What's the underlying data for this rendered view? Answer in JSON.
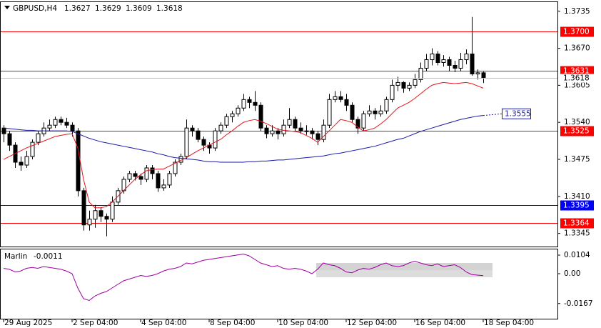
{
  "chart_data": [
    {
      "type": "candlestick",
      "symbol": "GBPUSD,H4",
      "ylim": [
        1.3322,
        1.3751
      ],
      "yticks": [
        1.3735,
        {
          "value": 1.367,
          "label": "1.3670"
        },
        1.3605,
        {
          "value": 1.354,
          "label": "1.3540"
        },
        1.3475,
        {
          "value": 1.341,
          "label": "1.3410"
        },
        1.3345
      ],
      "xticks": [
        {
          "value": 0,
          "label": "29 Aug 2025"
        },
        {
          "value": 12,
          "label": "2 Sep 04:00"
        },
        {
          "value": 24,
          "label": "4 Sep 04:00"
        },
        {
          "value": 36,
          "label": "8 Sep 04:00"
        },
        {
          "value": 48,
          "label": "10 Sep 04:00"
        },
        {
          "value": 60,
          "label": "12 Sep 04:00"
        },
        {
          "value": 72,
          "label": "16 Sep 04:00"
        },
        {
          "value": 84,
          "label": "18 Sep 04:00"
        }
      ],
      "series": [
        {
          "type": "candlestick",
          "up_color": "#ffffff",
          "down_color": "#000000",
          "values": [
            [
              1.353,
              1.3535,
              1.3505,
              1.352
            ],
            [
              1.352,
              1.3525,
              1.349,
              1.35
            ],
            [
              1.35,
              1.3505,
              1.346,
              1.347
            ],
            [
              1.347,
              1.348,
              1.3455,
              1.3465
            ],
            [
              1.3465,
              1.349,
              1.346,
              1.348
            ],
            [
              1.348,
              1.351,
              1.3475,
              1.3505
            ],
            [
              1.3505,
              1.3525,
              1.35,
              1.352
            ],
            [
              1.352,
              1.354,
              1.3515,
              1.353
            ],
            [
              1.353,
              1.3545,
              1.3525,
              1.3535
            ],
            [
              1.3535,
              1.355,
              1.353,
              1.3545
            ],
            [
              1.3545,
              1.355,
              1.3535,
              1.354
            ],
            [
              1.354,
              1.3548,
              1.353,
              1.3535
            ],
            [
              1.3535,
              1.354,
              1.3515,
              1.3525
            ],
            [
              1.3525,
              1.353,
              1.341,
              1.342
            ],
            [
              1.342,
              1.3425,
              1.335,
              1.336
            ],
            [
              1.336,
              1.3385,
              1.335,
              1.337
            ],
            [
              1.337,
              1.3395,
              1.3355,
              1.3385
            ],
            [
              1.3385,
              1.339,
              1.3365,
              1.3375
            ],
            [
              1.3375,
              1.338,
              1.334,
              1.337
            ],
            [
              1.337,
              1.341,
              1.3365,
              1.34
            ],
            [
              1.34,
              1.3425,
              1.3395,
              1.342
            ],
            [
              1.342,
              1.3445,
              1.3415,
              1.344
            ],
            [
              1.344,
              1.3455,
              1.3435,
              1.345
            ],
            [
              1.345,
              1.3455,
              1.3438,
              1.3445
            ],
            [
              1.3445,
              1.345,
              1.343,
              1.344
            ],
            [
              1.344,
              1.3465,
              1.3435,
              1.346
            ],
            [
              1.346,
              1.3465,
              1.344,
              1.345
            ],
            [
              1.345,
              1.3455,
              1.3418,
              1.3425
            ],
            [
              1.3425,
              1.344,
              1.342,
              1.343
            ],
            [
              1.343,
              1.3455,
              1.3425,
              1.345
            ],
            [
              1.345,
              1.3475,
              1.3445,
              1.347
            ],
            [
              1.347,
              1.3485,
              1.3465,
              1.348
            ],
            [
              1.348,
              1.3545,
              1.3475,
              1.353
            ],
            [
              1.353,
              1.3535,
              1.3515,
              1.3525
            ],
            [
              1.3525,
              1.353,
              1.3505,
              1.351
            ],
            [
              1.351,
              1.3515,
              1.349,
              1.35
            ],
            [
              1.35,
              1.3505,
              1.3485,
              1.3495
            ],
            [
              1.3495,
              1.353,
              1.349,
              1.3525
            ],
            [
              1.3525,
              1.354,
              1.352,
              1.3535
            ],
            [
              1.3535,
              1.3555,
              1.353,
              1.355
            ],
            [
              1.355,
              1.356,
              1.354,
              1.3555
            ],
            [
              1.3555,
              1.357,
              1.355,
              1.3565
            ],
            [
              1.3565,
              1.359,
              1.356,
              1.358
            ],
            [
              1.358,
              1.3585,
              1.3565,
              1.3575
            ],
            [
              1.3575,
              1.3595,
              1.356,
              1.357
            ],
            [
              1.357,
              1.3575,
              1.3525,
              1.353
            ],
            [
              1.353,
              1.3535,
              1.3512,
              1.352
            ],
            [
              1.352,
              1.3535,
              1.3515,
              1.3525
            ],
            [
              1.3525,
              1.353,
              1.351,
              1.352
            ],
            [
              1.352,
              1.3545,
              1.3515,
              1.3535
            ],
            [
              1.3535,
              1.3565,
              1.353,
              1.3545
            ],
            [
              1.3545,
              1.355,
              1.3525,
              1.353
            ],
            [
              1.353,
              1.354,
              1.352,
              1.3525
            ],
            [
              1.3525,
              1.3535,
              1.3518,
              1.3525
            ],
            [
              1.3525,
              1.353,
              1.351,
              1.352
            ],
            [
              1.352,
              1.3525,
              1.35,
              1.351
            ],
            [
              1.351,
              1.3545,
              1.3505,
              1.3535
            ],
            [
              1.3535,
              1.359,
              1.353,
              1.358
            ],
            [
              1.358,
              1.3595,
              1.3575,
              1.3585
            ],
            [
              1.3585,
              1.3595,
              1.3575,
              1.358
            ],
            [
              1.358,
              1.359,
              1.356,
              1.357
            ],
            [
              1.357,
              1.3575,
              1.354,
              1.3545
            ],
            [
              1.3545,
              1.355,
              1.352,
              1.353
            ],
            [
              1.353,
              1.356,
              1.3525,
              1.3555
            ],
            [
              1.3555,
              1.357,
              1.355,
              1.356
            ],
            [
              1.356,
              1.3565,
              1.3545,
              1.3555
            ],
            [
              1.3555,
              1.357,
              1.355,
              1.356
            ],
            [
              1.356,
              1.3585,
              1.3555,
              1.358
            ],
            [
              1.358,
              1.3615,
              1.3575,
              1.3605
            ],
            [
              1.3605,
              1.362,
              1.3595,
              1.361
            ],
            [
              1.361,
              1.3612,
              1.3592,
              1.36
            ],
            [
              1.36,
              1.361,
              1.3595,
              1.3605
            ],
            [
              1.3605,
              1.3625,
              1.36,
              1.3615
            ],
            [
              1.3615,
              1.3645,
              1.361,
              1.3635
            ],
            [
              1.3635,
              1.366,
              1.363,
              1.365
            ],
            [
              1.365,
              1.367,
              1.364,
              1.366
            ],
            [
              1.366,
              1.3665,
              1.364,
              1.3645
            ],
            [
              1.3645,
              1.3658,
              1.3638,
              1.365
            ],
            [
              1.365,
              1.3655,
              1.363,
              1.364
            ],
            [
              1.364,
              1.3648,
              1.3628,
              1.3635
            ],
            [
              1.3635,
              1.3662,
              1.363,
              1.365
            ],
            [
              1.365,
              1.3668,
              1.3642,
              1.366
            ],
            [
              1.366,
              1.3725,
              1.3622,
              1.3625
            ],
            [
              1.3625,
              1.3633,
              1.3615,
              1.3627
            ],
            [
              1.3627,
              1.3629,
              1.3609,
              1.3618
            ]
          ]
        },
        {
          "type": "line",
          "color": "#e8141e",
          "values": [
            1.3475,
            1.348,
            1.3485,
            1.349,
            1.3495,
            1.3499,
            1.3503,
            1.3507,
            1.3511,
            1.3515,
            1.3517,
            1.3519,
            1.352,
            1.3495,
            1.344,
            1.34,
            1.339,
            1.339,
            1.3392,
            1.34,
            1.341,
            1.342,
            1.343,
            1.344,
            1.3448,
            1.3455,
            1.3457,
            1.3458,
            1.3458,
            1.3463,
            1.3468,
            1.3473,
            1.3478,
            1.3484,
            1.349,
            1.3495,
            1.35,
            1.3505,
            1.351,
            1.3518,
            1.3525,
            1.3533,
            1.354,
            1.3543,
            1.3545,
            1.3542,
            1.3538,
            1.3533,
            1.3528,
            1.3526,
            1.3525,
            1.3524,
            1.3522,
            1.3517,
            1.3512,
            1.3505,
            1.3515,
            1.3525,
            1.3535,
            1.3545,
            1.3543,
            1.354,
            1.3532,
            1.3525,
            1.3527,
            1.353,
            1.3537,
            1.3545,
            1.3555,
            1.3565,
            1.357,
            1.3575,
            1.3582,
            1.359,
            1.3598,
            1.3605,
            1.3608,
            1.361,
            1.3609,
            1.3608,
            1.3609,
            1.361,
            1.3608,
            1.3604,
            1.36
          ]
        },
        {
          "type": "line",
          "color": "#1a1aa8",
          "values": [
            1.353,
            1.3529,
            1.3528,
            1.3527,
            1.3526,
            1.3526,
            1.3525,
            1.3525,
            1.3525,
            1.3525,
            1.3525,
            1.3525,
            1.3524,
            1.352,
            1.3516,
            1.3512,
            1.3509,
            1.3506,
            1.3504,
            1.3502,
            1.35,
            1.3498,
            1.3496,
            1.3494,
            1.3492,
            1.349,
            1.3488,
            1.3485,
            1.3483,
            1.348,
            1.3478,
            1.3477,
            1.3476,
            1.3475,
            1.3474,
            1.3472,
            1.3471,
            1.3471,
            1.347,
            1.347,
            1.347,
            1.347,
            1.347,
            1.3471,
            1.3471,
            1.3472,
            1.3472,
            1.3473,
            1.3474,
            1.3474,
            1.3475,
            1.3476,
            1.3477,
            1.3478,
            1.3479,
            1.348,
            1.3481,
            1.3483,
            1.3485,
            1.3486,
            1.3488,
            1.349,
            1.3492,
            1.3494,
            1.3496,
            1.3498,
            1.3501,
            1.3504,
            1.3507,
            1.351,
            1.3512,
            1.3516,
            1.352,
            1.3524,
            1.3527,
            1.353,
            1.3533,
            1.3536,
            1.3539,
            1.3542,
            1.3545,
            1.3547,
            1.3549,
            1.3551,
            1.3552
          ]
        }
      ],
      "levels": [
        {
          "value": 1.37,
          "label": "1.3700",
          "color": "#ff0000"
        },
        {
          "value": 1.3631,
          "color": "#ff0000"
        },
        {
          "value": 1.3525,
          "color": "#ff0000"
        },
        {
          "value": 1.3395,
          "color": "#0000ff"
        },
        {
          "value": 1.3364,
          "color": "#ff0000"
        }
      ],
      "ma_label": 1.3555
    },
    {
      "type": "line",
      "title": "Marlin",
      "ylim": [
        -0.0252,
        0.0136
      ],
      "yticks": [
        0.0104,
        {
          "value": 0,
          "label": "0.00"
        },
        -0.0167
      ],
      "series": [
        {
          "color": "#a000a0",
          "values": [
            0.003,
            0.0025,
            0.001,
            0.0015,
            0.003,
            0.0035,
            0.003,
            0.004,
            0.0035,
            0.003,
            0.0025,
            0.0015,
            0,
            -0.008,
            -0.014,
            -0.015,
            -0.0125,
            -0.011,
            -0.01,
            -0.008,
            -0.006,
            -0.004,
            -0.003,
            -0.002,
            -0.001,
            -0.0015,
            -0.001,
            0,
            0.0015,
            0.0025,
            0.003,
            0.004,
            0.006,
            0.0055,
            0.0065,
            0.0075,
            0.008,
            0.0085,
            0.009,
            0.0095,
            0.01,
            0.0105,
            0.011,
            0.01,
            0.008,
            0.006,
            0.005,
            0.004,
            0.0045,
            0.003,
            0.0025,
            0.003,
            0.0025,
            0.0015,
            0,
            0.0025,
            0.006,
            0.005,
            0.0045,
            0.003,
            0.001,
            0.0005,
            0.002,
            0.003,
            0.0025,
            0.0035,
            0.005,
            0.006,
            0.0045,
            0.004,
            0.0045,
            0.006,
            0.007,
            0.006,
            0.005,
            0.0045,
            0.0055,
            0.004,
            0.0045,
            0.005,
            0.0035,
            0.001,
            -0.0005,
            -0.0008,
            -0.0011
          ]
        }
      ]
    }
  ]
}
